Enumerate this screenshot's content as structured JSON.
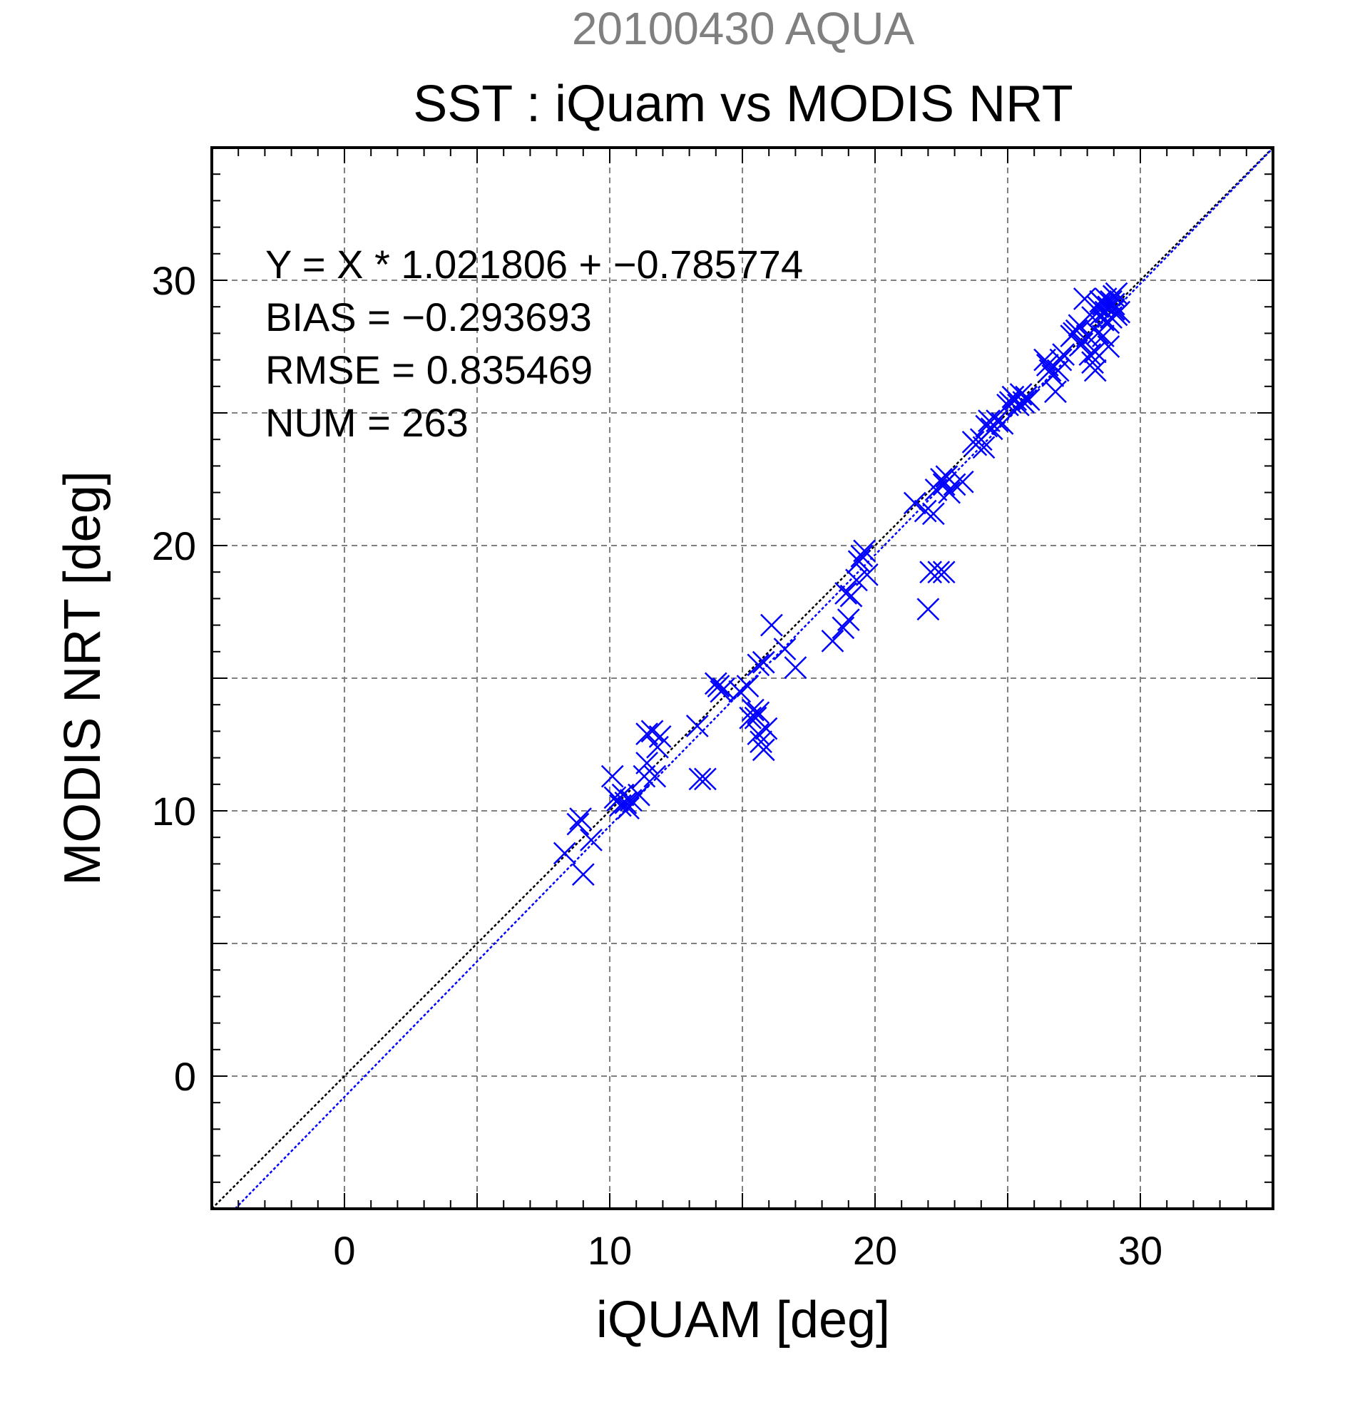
{
  "chart_data": {
    "type": "scatter",
    "supertitle": "20100430 AQUA",
    "title": "SST : iQuam vs MODIS NRT",
    "xlabel": "iQUAM [deg]",
    "ylabel": "MODIS NRT [deg]",
    "xlim": [
      -5,
      35
    ],
    "ylim": [
      -5,
      35
    ],
    "xticks": [
      0,
      10,
      20,
      30
    ],
    "yticks": [
      0,
      10,
      20,
      30
    ],
    "xtick_labels": [
      "0",
      "10",
      "20",
      "30"
    ],
    "ytick_labels": [
      "0",
      "10",
      "20",
      "30"
    ],
    "grid": true,
    "grid_step": 5,
    "stats": {
      "equation": "Y = X * 1.021806 + −0.785774",
      "bias": "BIAS = −0.293693",
      "rmse": "RMSE = 0.835469",
      "num": "NUM = 263"
    },
    "fit": {
      "slope": 1.021806,
      "intercept": -0.785774
    },
    "colors": {
      "points": "#0000ff",
      "fit_line": "#0000ff",
      "identity_line": "#000000",
      "supertitle": "#808080",
      "grid": "#808080"
    },
    "series": [
      {
        "marker": "x",
        "points": [
          [
            8.3,
            8.4
          ],
          [
            8.8,
            9.5
          ],
          [
            8.9,
            9.7
          ],
          [
            9.0,
            7.6
          ],
          [
            9.3,
            8.9
          ],
          [
            10.1,
            11.3
          ],
          [
            10.2,
            10.5
          ],
          [
            10.3,
            10.4
          ],
          [
            10.4,
            10.2
          ],
          [
            10.5,
            10.6
          ],
          [
            10.6,
            10.3
          ],
          [
            10.7,
            10.1
          ],
          [
            10.8,
            10.4
          ],
          [
            11.1,
            10.6
          ],
          [
            11.3,
            11.3
          ],
          [
            11.4,
            11.8
          ],
          [
            11.4,
            12.9
          ],
          [
            11.6,
            13.0
          ],
          [
            11.7,
            11.3
          ],
          [
            11.8,
            12.4
          ],
          [
            11.9,
            12.8
          ],
          [
            13.3,
            13.2
          ],
          [
            13.4,
            11.2
          ],
          [
            13.6,
            11.2
          ],
          [
            14.0,
            14.8
          ],
          [
            14.1,
            14.7
          ],
          [
            14.2,
            14.5
          ],
          [
            14.3,
            14.6
          ],
          [
            14.9,
            14.5
          ],
          [
            15.2,
            14.7
          ],
          [
            15.3,
            13.5
          ],
          [
            15.4,
            13.8
          ],
          [
            15.5,
            13.5
          ],
          [
            15.6,
            13.7
          ],
          [
            15.6,
            12.9
          ],
          [
            15.7,
            12.6
          ],
          [
            15.8,
            12.3
          ],
          [
            15.9,
            13.1
          ],
          [
            15.6,
            15.5
          ],
          [
            15.8,
            15.6
          ],
          [
            16.1,
            17.0
          ],
          [
            16.6,
            16.1
          ],
          [
            17.0,
            15.4
          ],
          [
            18.4,
            16.4
          ],
          [
            18.8,
            16.9
          ],
          [
            19.0,
            17.2
          ],
          [
            18.9,
            18.2
          ],
          [
            19.1,
            18.1
          ],
          [
            19.3,
            18.7
          ],
          [
            19.4,
            19.4
          ],
          [
            19.5,
            19.6
          ],
          [
            19.6,
            19.8
          ],
          [
            19.7,
            18.9
          ],
          [
            21.5,
            21.6
          ],
          [
            21.9,
            21.3
          ],
          [
            22.0,
            17.6
          ],
          [
            22.1,
            19.0
          ],
          [
            22.2,
            21.2
          ],
          [
            22.3,
            22.1
          ],
          [
            22.4,
            19.0
          ],
          [
            22.5,
            22.5
          ],
          [
            22.6,
            19.0
          ],
          [
            22.6,
            22.3
          ],
          [
            22.7,
            22.6
          ],
          [
            22.8,
            22.0
          ],
          [
            23.0,
            22.3
          ],
          [
            23.3,
            22.4
          ],
          [
            23.7,
            23.9
          ],
          [
            23.8,
            23.8
          ],
          [
            24.0,
            24.0
          ],
          [
            24.1,
            23.7
          ],
          [
            24.2,
            24.5
          ],
          [
            24.3,
            24.7
          ],
          [
            24.4,
            24.4
          ],
          [
            24.6,
            24.7
          ],
          [
            24.8,
            24.6
          ],
          [
            25.0,
            25.3
          ],
          [
            25.1,
            25.4
          ],
          [
            25.2,
            25.6
          ],
          [
            25.3,
            25.5
          ],
          [
            25.4,
            25.3
          ],
          [
            25.5,
            25.7
          ],
          [
            25.6,
            25.4
          ],
          [
            25.7,
            25.6
          ],
          [
            25.8,
            25.5
          ],
          [
            26.4,
            27.0
          ],
          [
            26.5,
            26.8
          ],
          [
            26.6,
            26.6
          ],
          [
            26.7,
            26.4
          ],
          [
            26.8,
            25.8
          ],
          [
            26.9,
            26.6
          ],
          [
            27.0,
            27.0
          ],
          [
            27.1,
            27.2
          ],
          [
            27.4,
            27.9
          ],
          [
            27.5,
            28.0
          ],
          [
            27.6,
            28.1
          ],
          [
            27.7,
            28.3
          ],
          [
            27.8,
            27.6
          ],
          [
            27.9,
            29.3
          ],
          [
            28.0,
            27.9
          ],
          [
            28.1,
            27.2
          ],
          [
            28.2,
            26.9
          ],
          [
            28.2,
            28.6
          ],
          [
            28.3,
            27.3
          ],
          [
            28.3,
            26.6
          ],
          [
            28.4,
            29.0
          ],
          [
            28.4,
            28.0
          ],
          [
            28.5,
            29.2
          ],
          [
            28.5,
            28.7
          ],
          [
            28.6,
            29.1
          ],
          [
            28.6,
            28.5
          ],
          [
            28.7,
            28.8
          ],
          [
            28.7,
            29.3
          ],
          [
            28.8,
            29.0
          ],
          [
            28.8,
            28.4
          ],
          [
            28.9,
            29.2
          ],
          [
            28.9,
            28.6
          ],
          [
            29.0,
            29.4
          ],
          [
            29.0,
            28.9
          ],
          [
            29.1,
            29.5
          ],
          [
            29.1,
            28.7
          ],
          [
            29.2,
            28.8
          ],
          [
            28.8,
            27.5
          ],
          [
            28.6,
            27.9
          ],
          [
            29.0,
            29.1
          ]
        ]
      }
    ]
  }
}
